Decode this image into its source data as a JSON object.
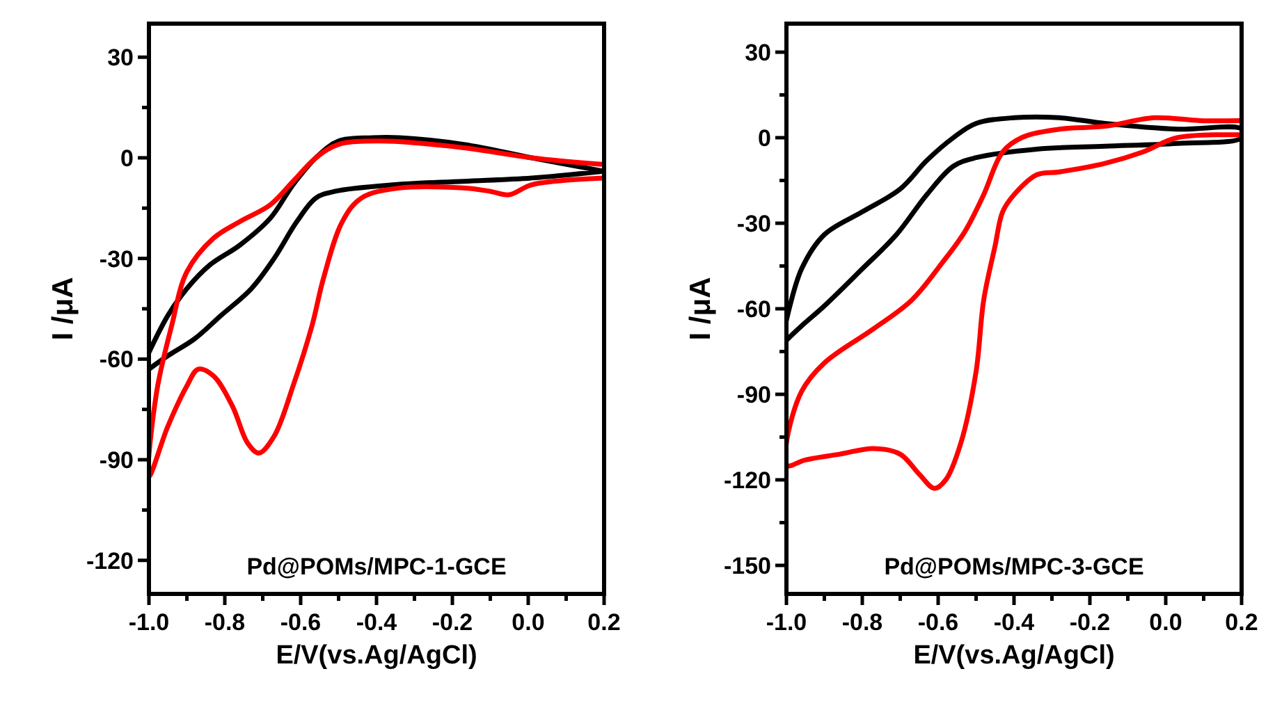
{
  "chart_data": [
    {
      "type": "line",
      "xlabel": "E/V(vs.Ag/AgCl)",
      "ylabel": "I /μA",
      "annotations": [
        "Pd@POMs/MPC-1-GCE"
      ],
      "grid": false,
      "line_style": "solid",
      "xlim": [
        -1.0,
        0.2
      ],
      "ylim": [
        -130,
        40
      ],
      "xticks": [
        {
          "value": -1.0,
          "label": "-1.0"
        },
        {
          "value": -0.9,
          "label": null
        },
        {
          "value": -0.8,
          "label": "-0.8"
        },
        {
          "value": -0.7,
          "label": null
        },
        {
          "value": -0.6,
          "label": "-0.6"
        },
        {
          "value": -0.5,
          "label": null
        },
        {
          "value": -0.4,
          "label": "-0.4"
        },
        {
          "value": -0.3,
          "label": null
        },
        {
          "value": -0.2,
          "label": "-0.2"
        },
        {
          "value": -0.1,
          "label": null
        },
        {
          "value": 0.0,
          "label": "0.0"
        },
        {
          "value": 0.1,
          "label": null
        },
        {
          "value": 0.2,
          "label": "0.2"
        }
      ],
      "yticks": [
        -120,
        {
          "value": -105,
          "label": null
        },
        -90,
        {
          "value": -75,
          "label": null
        },
        -60,
        {
          "value": -45,
          "label": null
        },
        -30,
        {
          "value": -15,
          "label": null
        },
        0,
        {
          "value": 15,
          "label": null
        },
        30
      ],
      "series": [
        {
          "color": "#000000",
          "x": [
            -1.0,
            -0.95,
            -0.9,
            -0.84,
            -0.76,
            -0.68,
            -0.62,
            -0.56,
            -0.5,
            -0.41,
            -0.34,
            -0.17,
            0.01,
            0.2,
            0.2,
            0.01,
            -0.17,
            -0.35,
            -0.51,
            -0.56,
            -0.61,
            -0.67,
            -0.73,
            -0.81,
            -0.88,
            -0.95,
            -1.0
          ],
          "values": [
            -58,
            -47,
            -39,
            -32,
            -26,
            -18,
            -8,
            0,
            5,
            6,
            6,
            4,
            0,
            -4,
            -4,
            -6,
            -7,
            -8,
            -10,
            -12,
            -19,
            -30,
            -39,
            -47,
            -54,
            -59,
            -63
          ]
        },
        {
          "color": "#ff0000",
          "x": [
            0.2,
            0.01,
            -0.05,
            -0.1,
            -0.17,
            -0.34,
            -0.44,
            -0.49,
            -0.54,
            -0.57,
            -0.62,
            -0.67,
            -0.71,
            -0.74,
            -0.78,
            -0.83,
            -0.87,
            -0.9,
            -0.95,
            -1.0,
            -0.98,
            -0.94,
            -0.9,
            -0.83,
            -0.76,
            -0.68,
            -0.62,
            -0.56,
            -0.5,
            -0.39,
            -0.17,
            0.01,
            0.2
          ],
          "values": [
            -6,
            -8,
            -11,
            -10,
            -9,
            -9,
            -12,
            -19,
            -36,
            -50,
            -68,
            -83,
            -88,
            -85,
            -74,
            -65,
            -63,
            -68,
            -80,
            -95,
            -70,
            -50,
            -34,
            -24,
            -19,
            -14,
            -7,
            0,
            4,
            5,
            3,
            0,
            -2
          ]
        }
      ]
    },
    {
      "type": "line",
      "xlabel": "E/V(vs.Ag/AgCl)",
      "ylabel": "I /μA",
      "annotations": [
        "Pd@POMs/MPC-3-GCE"
      ],
      "grid": false,
      "line_style": "solid",
      "xlim": [
        -1.0,
        0.2
      ],
      "ylim": [
        -160,
        40
      ],
      "xticks": [
        {
          "value": -1.0,
          "label": "-1.0"
        },
        {
          "value": -0.9,
          "label": null
        },
        {
          "value": -0.8,
          "label": "-0.8"
        },
        {
          "value": -0.7,
          "label": null
        },
        {
          "value": -0.6,
          "label": "-0.6"
        },
        {
          "value": -0.5,
          "label": null
        },
        {
          "value": -0.4,
          "label": "-0.4"
        },
        {
          "value": -0.3,
          "label": null
        },
        {
          "value": -0.2,
          "label": "-0.2"
        },
        {
          "value": -0.1,
          "label": null
        },
        {
          "value": 0.0,
          "label": "0.0"
        },
        {
          "value": 0.1,
          "label": null
        },
        {
          "value": 0.2,
          "label": "0.2"
        }
      ],
      "yticks": [
        -150,
        {
          "value": -135,
          "label": null
        },
        -120,
        {
          "value": -105,
          "label": null
        },
        -90,
        {
          "value": -75,
          "label": null
        },
        -60,
        {
          "value": -45,
          "label": null
        },
        -30,
        {
          "value": -15,
          "label": null
        },
        0,
        {
          "value": 15,
          "label": null
        },
        30
      ],
      "series": [
        {
          "color": "#000000",
          "x": [
            -1.0,
            -0.96,
            -0.9,
            -0.8,
            -0.7,
            -0.63,
            -0.56,
            -0.5,
            -0.4,
            -0.28,
            -0.16,
            0.03,
            0.2,
            0.2,
            0.03,
            -0.16,
            -0.34,
            -0.5,
            -0.56,
            -0.63,
            -0.71,
            -0.8,
            -0.9,
            -0.96,
            -1.0
          ],
          "values": [
            -64,
            -46,
            -34,
            -26,
            -18,
            -8,
            0,
            5,
            7,
            7,
            5,
            3,
            3,
            0,
            -2,
            -3,
            -4,
            -7,
            -10,
            -20,
            -34,
            -46,
            -59,
            -66,
            -71
          ]
        },
        {
          "color": "#ff0000",
          "x": [
            0.2,
            0.03,
            -0.06,
            -0.16,
            -0.28,
            -0.34,
            -0.4,
            -0.43,
            -0.45,
            -0.48,
            -0.5,
            -0.54,
            -0.58,
            -0.61,
            -0.65,
            -0.7,
            -0.77,
            -0.86,
            -0.95,
            -1.0,
            -1.0,
            -0.96,
            -0.9,
            -0.77,
            -0.67,
            -0.59,
            -0.53,
            -0.48,
            -0.43,
            -0.38,
            -0.28,
            -0.16,
            -0.03,
            0.09,
            0.2
          ],
          "values": [
            1,
            0,
            -5,
            -9,
            -12,
            -13,
            -20,
            -26,
            -38,
            -57,
            -82,
            -107,
            -120,
            -123,
            -118,
            -111,
            -109,
            -111,
            -113,
            -115,
            -107,
            -89,
            -79,
            -67,
            -57,
            -44,
            -33,
            -20,
            -5,
            0,
            3,
            4,
            7,
            6,
            6
          ]
        }
      ]
    }
  ]
}
